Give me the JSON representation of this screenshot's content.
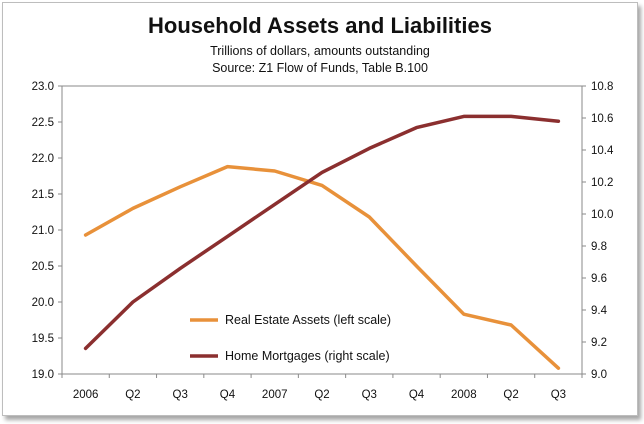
{
  "chart_data": {
    "type": "line",
    "title": "Household Assets and Liabilities",
    "subtitle": [
      "Trillions of dollars, amounts outstanding",
      "Source: Z1 Flow of Funds, Table B.100"
    ],
    "categories": [
      "2006",
      "Q2",
      "Q3",
      "Q4",
      "2007",
      "Q2",
      "Q3",
      "Q4",
      "2008",
      "Q2",
      "Q3"
    ],
    "y_left": {
      "ylim": [
        19.0,
        23.0
      ],
      "ticks": [
        "23.0",
        "22.5",
        "22.0",
        "21.5",
        "21.0",
        "20.5",
        "20.0",
        "19.5",
        "19.0"
      ]
    },
    "y_right": {
      "ylim": [
        9.0,
        10.8
      ],
      "ticks": [
        "10.8",
        "10.6",
        "10.4",
        "10.2",
        "10.0",
        "9.8",
        "9.6",
        "9.4",
        "9.2",
        "9.0"
      ]
    },
    "series": [
      {
        "name": "Real Estate Assets (left scale)",
        "axis": "left",
        "color": "#E8913A",
        "values": [
          20.93,
          21.3,
          21.6,
          21.88,
          21.82,
          21.62,
          21.18,
          20.5,
          19.83,
          19.68,
          19.08
        ]
      },
      {
        "name": "Home Mortgages (right scale)",
        "axis": "right",
        "color": "#8B2F2F",
        "values": [
          9.16,
          9.45,
          9.66,
          9.86,
          10.06,
          10.26,
          10.41,
          10.54,
          10.61,
          10.61,
          10.58
        ]
      }
    ],
    "grid": false,
    "legend_placement": "bottom-center"
  }
}
